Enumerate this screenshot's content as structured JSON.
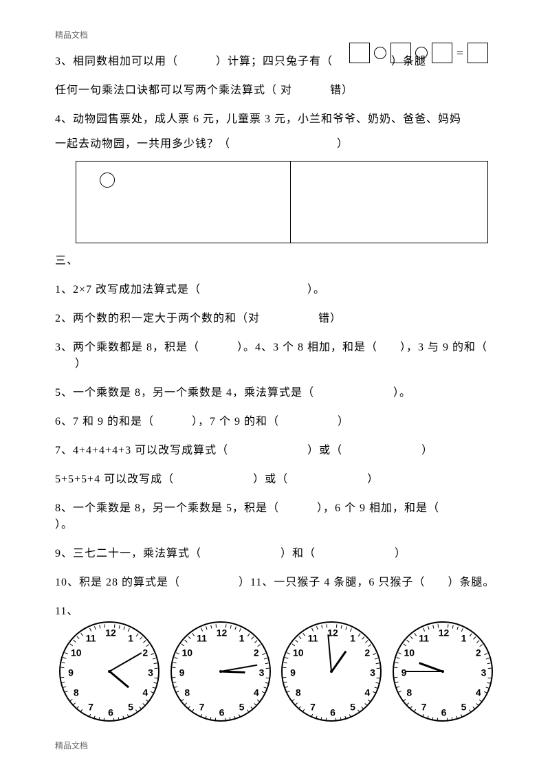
{
  "header": "精品文档",
  "footer": "精品文档",
  "equation_row": {
    "eq_sign": "="
  },
  "q3": {
    "p1": "3、相同数相加可以用（",
    "p2": "）计算；四只兔子有（",
    "p3": "）条腿"
  },
  "q3b": {
    "p1": "任何一句乘法口诀都可以写两个乘法算式（",
    "opt_true": "对",
    "opt_false": "错）"
  },
  "q4": {
    "p1": "4、动物园售票处，成人票 6 元，儿童票 3 元，小兰和爷爷、奶奶、爸爸、妈妈",
    "p2": "一起去动物园，一共用多少钱？（",
    "p3": "）"
  },
  "section3": "三、",
  "s3": {
    "q1": {
      "p1": "1、2×7 改写成加法算式是（",
      "p2": "）。"
    },
    "q2": {
      "p1": "2、两个数的积一定大于两个数的和（对",
      "p2": "错）"
    },
    "q3": {
      "p1": "3、两个乘数都是 8，积是（",
      "p2": "）。4、3 个 8 相加，和是（",
      "p3": "），3 与 9 的和（",
      "p4": "）"
    },
    "q5": {
      "p1": "5、一个乘数是 8，另一个乘数是 4，乘法算式是（",
      "p2": "）。"
    },
    "q6": {
      "p1": "6、7 和 9 的和是（",
      "p2": "），7 个 9 的和（",
      "p3": "）"
    },
    "q7": {
      "p1": "7、4+4+4+4+3 可以改写成算式（",
      "p2": "）或（",
      "p3": "）"
    },
    "q7b": {
      "p1": "5+5+5+4 可以改写成（",
      "p2": "）或（",
      "p3": "）"
    },
    "q8": {
      "p1": "8、一个乘数是 8，另一个乘数是 5，积是（",
      "p2": "），6 个 9 相加，和是（",
      "p3": "）。"
    },
    "q9": {
      "p1": "9、三七二十一，乘法算式（",
      "p2": "）和（",
      "p3": "）"
    },
    "q10": {
      "p1": "10、积是 28 的算式是（",
      "p2": "）11、一只猴子 4 条腿，6 只猴子（",
      "p3": "）条腿。"
    },
    "q11_label": "11、"
  },
  "clocks": [
    {
      "hour_angle": 130,
      "minute_angle": 60
    },
    {
      "hour_angle": 92,
      "minute_angle": 80
    },
    {
      "hour_angle": 35,
      "minute_angle": 355
    },
    {
      "hour_angle": 290,
      "minute_angle": 270
    }
  ],
  "clock_style": {
    "face_border": "#000000",
    "num_font": "Arial",
    "num_size": 14,
    "hand_color": "#000000"
  }
}
